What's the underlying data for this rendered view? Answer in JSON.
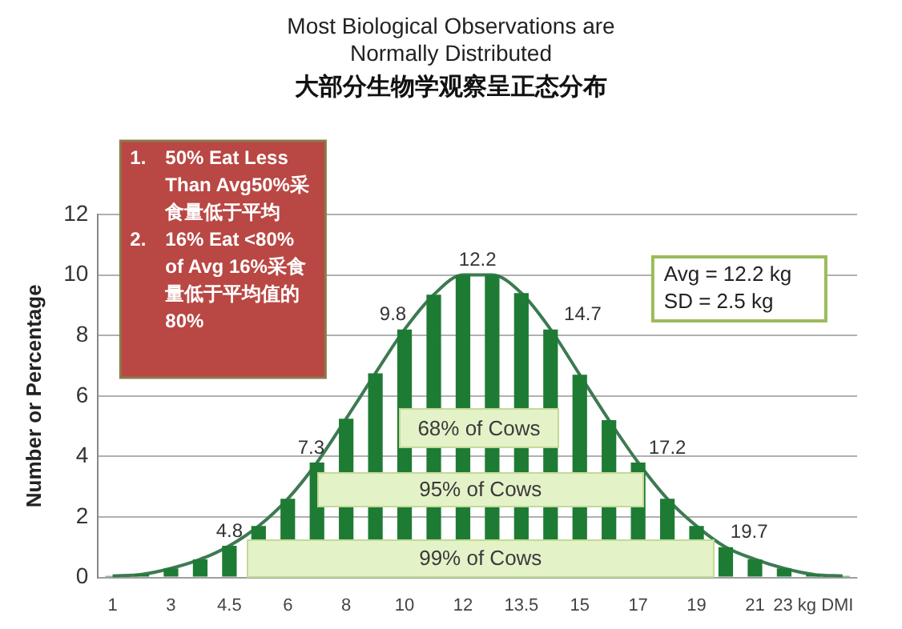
{
  "chart_data": {
    "type": "bar",
    "title": "Most Biological Observations are Normally Distributed",
    "subtitle": "大部分生物学观察呈正态分布",
    "ylabel": "Number or Percentage",
    "categories": [
      "1",
      null,
      "3",
      null,
      "4.5",
      null,
      "6",
      null,
      "8",
      null,
      "10",
      null,
      "12",
      null,
      "13.5",
      null,
      "15",
      null,
      "17",
      null,
      "19",
      null,
      "21",
      null,
      "23 kg DMI",
      null
    ],
    "series": [
      {
        "color": "#1e7b34",
        "values": [
          0.05,
          0.1,
          0.3,
          0.6,
          1.05,
          1.7,
          2.6,
          3.8,
          5.25,
          6.75,
          8.2,
          9.35,
          10.0,
          10.0,
          9.4,
          8.2,
          6.7,
          5.2,
          3.8,
          2.6,
          1.7,
          1.0,
          0.6,
          0.3,
          0.1,
          0.05
        ]
      },
      {
        "type": "line",
        "color": "#3d7a52",
        "values": [
          0.05,
          0.1,
          0.3,
          0.6,
          1.05,
          1.7,
          2.6,
          3.8,
          5.25,
          6.75,
          8.2,
          9.35,
          10.0,
          10.0,
          9.4,
          8.2,
          6.7,
          5.2,
          3.8,
          2.6,
          1.7,
          1.0,
          0.6,
          0.3,
          0.1,
          0.05
        ]
      }
    ],
    "marker": "none",
    "ylim": [
      0,
      12
    ],
    "yticks": [
      0,
      2,
      4,
      6,
      8,
      10,
      12
    ],
    "grid": "y",
    "annotations": [
      "1. 50% Eat Less Than Avg50%采食量低于平均",
      "2. 16% Eat <80% of Avg 16%采食量低于平均值的80%",
      "Avg = 12.2 kg",
      "SD = 2.5 kg",
      "68% of Cows",
      "95% of Cows",
      "99% of Cows",
      "4.8",
      "7.3",
      "9.8",
      "12.2",
      "14.7",
      "17.2",
      "19.7"
    ]
  }
}
